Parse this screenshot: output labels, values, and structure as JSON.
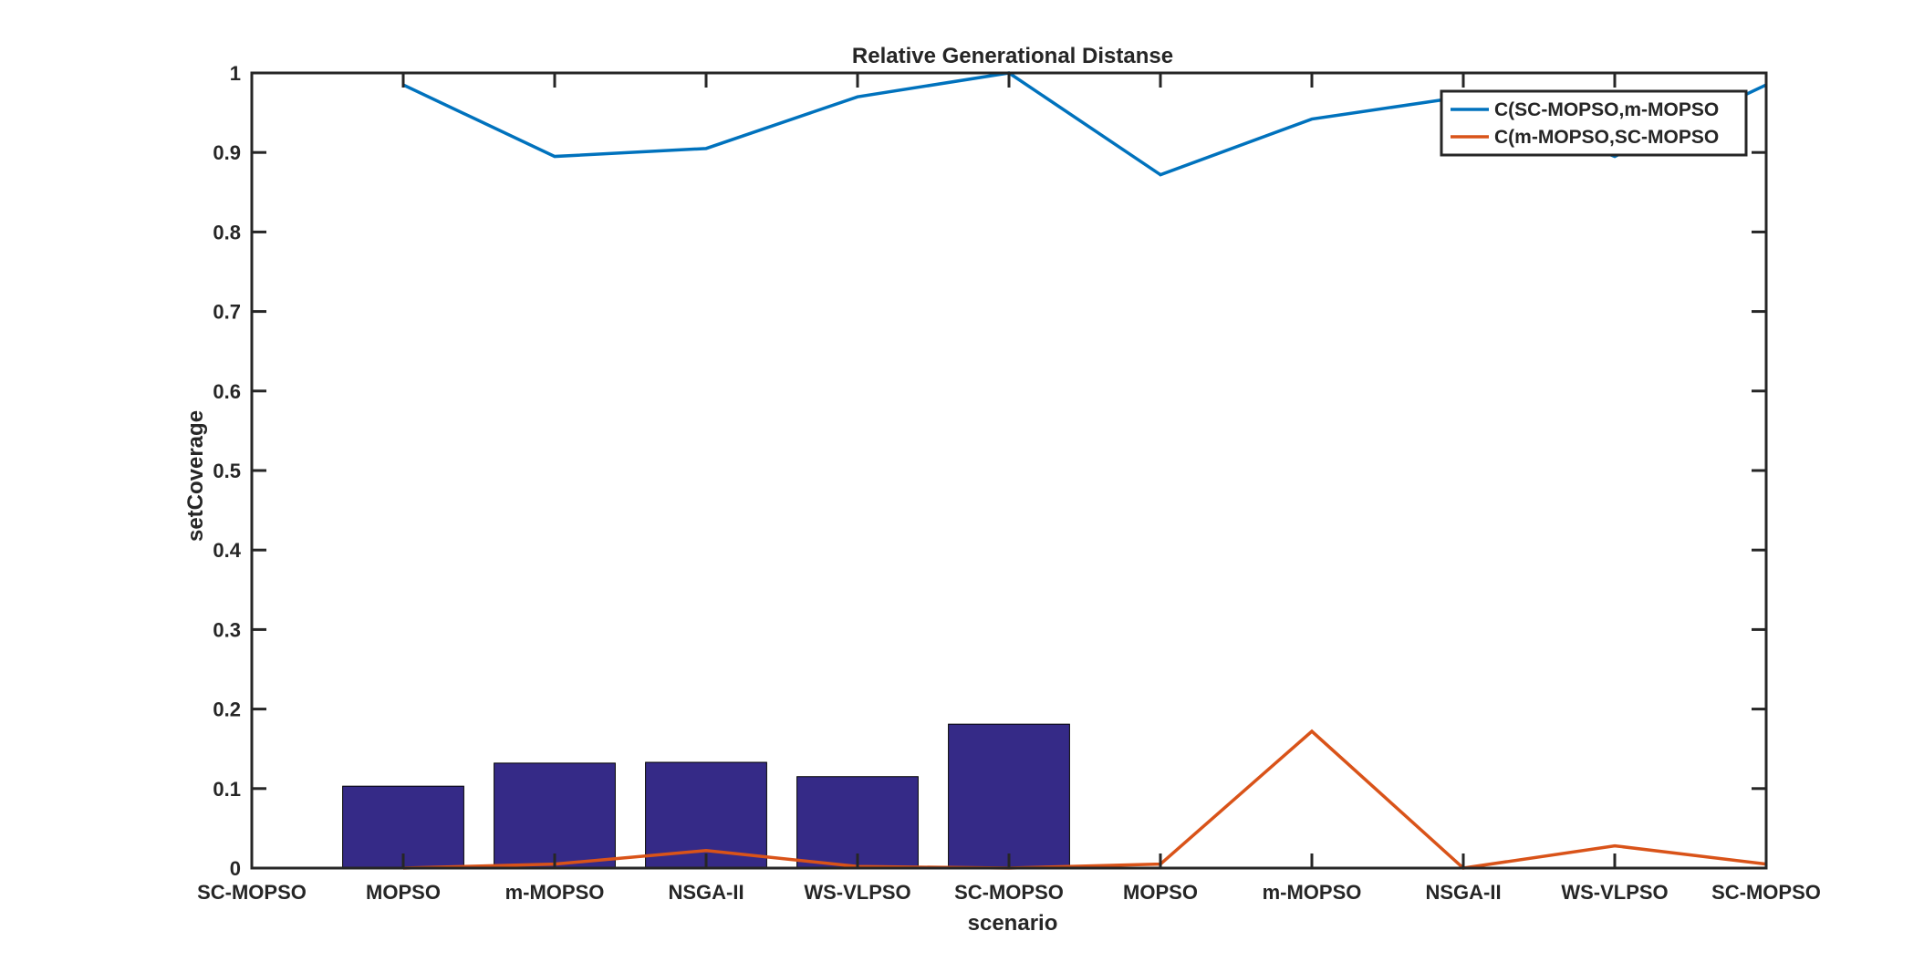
{
  "chart_data": {
    "type": "bar",
    "title": "Relative Generational Distanse",
    "xlabel": "scenario",
    "ylabel": "setCoverage",
    "ylim": [
      0,
      1
    ],
    "yticks": [
      "0",
      "0.1",
      "0.2",
      "0.3",
      "0.4",
      "0.5",
      "0.6",
      "0.7",
      "0.8",
      "0.9",
      "1"
    ],
    "categories": [
      "SC-MOPSO",
      "MOPSO",
      "m-MOPSO",
      "NSGA-II",
      "WS-VLPSO",
      "SC-MOPSO",
      "MOPSO",
      "m-MOPSO",
      "NSGA-II",
      "WS-VLPSO",
      "SC-MOPSO"
    ],
    "bars": {
      "color": "#352a87",
      "values": [
        null,
        0.103,
        0.132,
        0.133,
        0.115,
        0.181,
        null,
        null,
        null,
        null,
        null
      ]
    },
    "series": [
      {
        "name": "C(SC-MOPSO,m-MOPSO",
        "color": "#0072bd",
        "values": [
          null,
          0.985,
          0.895,
          0.905,
          0.97,
          1.0,
          0.872,
          0.942,
          0.97,
          0.895,
          0.985
        ]
      },
      {
        "name": "C(m-MOPSO,SC-MOPSO",
        "color": "#d95319",
        "values": [
          null,
          0.0,
          0.005,
          0.022,
          0.002,
          0.0,
          0.005,
          0.172,
          0.0,
          0.028,
          0.005
        ]
      }
    ],
    "legend": "top-right",
    "grid": false
  }
}
